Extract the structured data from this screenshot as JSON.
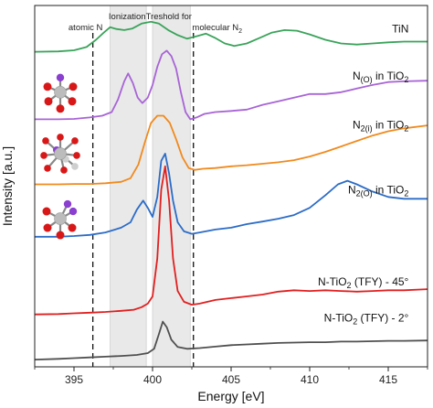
{
  "chart_data": {
    "type": "line",
    "xlabel": "Energy [eV]",
    "ylabel": "Intensity [a.u.]",
    "xlim": [
      392.5,
      417.5
    ],
    "ylim": [
      0,
      10
    ],
    "xticks": [
      395,
      400,
      405,
      410,
      415
    ],
    "annotations": {
      "atomic_n": "atomic N",
      "ionization": "IonizationTreshold for",
      "molecular_n2": "molecular N",
      "molecular_n2_sub": "2"
    },
    "bands": [
      {
        "from": 397.3,
        "to": 399.6,
        "color": "#e9e9e9"
      },
      {
        "from": 400.0,
        "to": 402.4,
        "color": "#e9e9e9"
      }
    ],
    "vlines": [
      396.2,
      402.6
    ],
    "series": [
      {
        "name": "TiN",
        "label": {
          "parts": [
            {
              "t": "TiN",
              "s": "n"
            }
          ]
        },
        "color": "#3aa35a",
        "label_x": 416.3,
        "label_y": 9.25,
        "points": [
          [
            392.5,
            8.72
          ],
          [
            394,
            8.73
          ],
          [
            395,
            8.76
          ],
          [
            395.8,
            8.85
          ],
          [
            396.4,
            9.05
          ],
          [
            396.9,
            9.25
          ],
          [
            397.3,
            9.4
          ],
          [
            397.7,
            9.35
          ],
          [
            398.2,
            9.32
          ],
          [
            398.7,
            9.36
          ],
          [
            399.3,
            9.5
          ],
          [
            399.9,
            9.55
          ],
          [
            400.4,
            9.5
          ],
          [
            401.0,
            9.32
          ],
          [
            401.6,
            9.18
          ],
          [
            402.2,
            9.08
          ],
          [
            402.8,
            9.15
          ],
          [
            403.4,
            9.22
          ],
          [
            404.0,
            9.1
          ],
          [
            404.6,
            8.95
          ],
          [
            405.2,
            8.88
          ],
          [
            406.0,
            8.95
          ],
          [
            406.8,
            9.1
          ],
          [
            407.6,
            9.25
          ],
          [
            408.4,
            9.32
          ],
          [
            409.2,
            9.3
          ],
          [
            410.0,
            9.2
          ],
          [
            411.0,
            9.05
          ],
          [
            412.0,
            8.95
          ],
          [
            413.0,
            8.92
          ],
          [
            414.0,
            8.95
          ],
          [
            415.0,
            8.98
          ],
          [
            416.0,
            9.0
          ],
          [
            417.5,
            9.0
          ]
        ]
      },
      {
        "name": "N(O) in TiO2",
        "label": {
          "parts": [
            {
              "t": "N",
              "s": "n"
            },
            {
              "t": "(O)",
              "s": "sub"
            },
            {
              "t": " in TiO",
              "s": "n"
            },
            {
              "t": "2",
              "s": "sub"
            }
          ]
        },
        "color": "#a864d6",
        "label_x": 416.3,
        "label_y": 7.95,
        "points": [
          [
            392.5,
            6.85
          ],
          [
            394,
            6.85
          ],
          [
            395,
            6.86
          ],
          [
            396,
            6.9
          ],
          [
            396.8,
            6.95
          ],
          [
            397.4,
            7.05
          ],
          [
            397.8,
            7.4
          ],
          [
            398.2,
            7.9
          ],
          [
            398.45,
            8.12
          ],
          [
            398.75,
            7.85
          ],
          [
            399.05,
            7.45
          ],
          [
            399.35,
            7.3
          ],
          [
            399.7,
            7.45
          ],
          [
            400.0,
            7.8
          ],
          [
            400.3,
            8.3
          ],
          [
            400.6,
            8.65
          ],
          [
            400.9,
            8.75
          ],
          [
            401.2,
            8.6
          ],
          [
            401.5,
            8.25
          ],
          [
            401.8,
            7.6
          ],
          [
            402.1,
            7.05
          ],
          [
            402.4,
            6.85
          ],
          [
            402.8,
            6.9
          ],
          [
            403.3,
            7.0
          ],
          [
            404.0,
            7.05
          ],
          [
            405.0,
            7.08
          ],
          [
            406.0,
            7.12
          ],
          [
            407.0,
            7.25
          ],
          [
            408.0,
            7.35
          ],
          [
            409.0,
            7.45
          ],
          [
            410.0,
            7.55
          ],
          [
            411.0,
            7.55
          ],
          [
            412.0,
            7.6
          ],
          [
            413.0,
            7.7
          ],
          [
            414.0,
            7.8
          ],
          [
            415.0,
            7.88
          ],
          [
            416.0,
            7.9
          ],
          [
            417.5,
            7.92
          ]
        ]
      },
      {
        "name": "N2(i) in TiO2",
        "label": {
          "parts": [
            {
              "t": "N",
              "s": "n"
            },
            {
              "t": "2(i)",
              "s": "sub"
            },
            {
              "t": " in TiO",
              "s": "n"
            },
            {
              "t": "2",
              "s": "sub"
            }
          ]
        },
        "color": "#f08a1e",
        "label_x": 416.3,
        "label_y": 6.6,
        "points": [
          [
            392.5,
            5.05
          ],
          [
            394,
            5.05
          ],
          [
            395,
            5.06
          ],
          [
            396,
            5.06
          ],
          [
            397,
            5.08
          ],
          [
            398,
            5.12
          ],
          [
            398.6,
            5.22
          ],
          [
            399.1,
            5.6
          ],
          [
            399.5,
            6.2
          ],
          [
            399.9,
            6.75
          ],
          [
            400.3,
            6.95
          ],
          [
            400.7,
            6.95
          ],
          [
            401.1,
            6.75
          ],
          [
            401.5,
            6.3
          ],
          [
            401.9,
            5.8
          ],
          [
            402.3,
            5.5
          ],
          [
            402.7,
            5.45
          ],
          [
            403.2,
            5.48
          ],
          [
            404.0,
            5.5
          ],
          [
            405.0,
            5.55
          ],
          [
            406.0,
            5.58
          ],
          [
            407.0,
            5.62
          ],
          [
            408.0,
            5.66
          ],
          [
            409.0,
            5.72
          ],
          [
            410.0,
            5.82
          ],
          [
            411.0,
            5.95
          ],
          [
            412.0,
            6.1
          ],
          [
            413.0,
            6.25
          ],
          [
            414.0,
            6.4
          ],
          [
            415.0,
            6.52
          ],
          [
            416.0,
            6.6
          ],
          [
            417.5,
            6.68
          ]
        ]
      },
      {
        "name": "N2(O) in TiO2",
        "label": {
          "parts": [
            {
              "t": "N",
              "s": "n"
            },
            {
              "t": "2(O)",
              "s": "sub"
            },
            {
              "t": " in TiO",
              "s": "n"
            },
            {
              "t": "2",
              "s": "sub"
            }
          ]
        },
        "color": "#2c6cc7",
        "label_x": 416.3,
        "label_y": 4.8,
        "points": [
          [
            392.5,
            3.6
          ],
          [
            394,
            3.6
          ],
          [
            395,
            3.62
          ],
          [
            396,
            3.65
          ],
          [
            397,
            3.72
          ],
          [
            398,
            3.85
          ],
          [
            398.6,
            4.0
          ],
          [
            399.0,
            4.35
          ],
          [
            399.4,
            4.6
          ],
          [
            399.7,
            4.4
          ],
          [
            400.0,
            4.15
          ],
          [
            400.3,
            4.7
          ],
          [
            400.55,
            5.7
          ],
          [
            400.8,
            5.9
          ],
          [
            401.05,
            5.35
          ],
          [
            401.3,
            4.6
          ],
          [
            401.6,
            4.0
          ],
          [
            402.0,
            3.75
          ],
          [
            402.5,
            3.68
          ],
          [
            403.0,
            3.72
          ],
          [
            404.0,
            3.8
          ],
          [
            405.0,
            3.85
          ],
          [
            406.0,
            3.95
          ],
          [
            407.0,
            4.02
          ],
          [
            408.0,
            4.1
          ],
          [
            409.0,
            4.2
          ],
          [
            410.0,
            4.4
          ],
          [
            411.0,
            4.75
          ],
          [
            411.8,
            5.05
          ],
          [
            412.4,
            5.15
          ],
          [
            413.0,
            5.05
          ],
          [
            414.0,
            4.85
          ],
          [
            415.0,
            4.7
          ],
          [
            416.0,
            4.65
          ],
          [
            417.5,
            4.65
          ]
        ]
      },
      {
        "name": "N-TiO2 (TFY) - 45°",
        "label": {
          "parts": [
            {
              "t": "N-TiO",
              "s": "n"
            },
            {
              "t": "2",
              "s": "sub"
            },
            {
              "t": " (TFY) - 45°",
              "s": "n"
            }
          ]
        },
        "color": "#e02020",
        "label_x": 416.3,
        "label_y": 2.25,
        "points": [
          [
            392.5,
            1.45
          ],
          [
            394,
            1.46
          ],
          [
            395,
            1.48
          ],
          [
            396,
            1.5
          ],
          [
            397,
            1.52
          ],
          [
            398,
            1.55
          ],
          [
            398.8,
            1.58
          ],
          [
            399.3,
            1.65
          ],
          [
            399.7,
            1.75
          ],
          [
            400.0,
            1.95
          ],
          [
            400.3,
            3.0
          ],
          [
            400.55,
            4.9
          ],
          [
            400.8,
            5.55
          ],
          [
            401.05,
            4.6
          ],
          [
            401.3,
            3.0
          ],
          [
            401.6,
            2.1
          ],
          [
            402.0,
            1.8
          ],
          [
            402.5,
            1.72
          ],
          [
            403.0,
            1.75
          ],
          [
            404.0,
            1.85
          ],
          [
            405.0,
            1.9
          ],
          [
            406.0,
            1.95
          ],
          [
            407.0,
            2.0
          ],
          [
            408.0,
            2.08
          ],
          [
            409.0,
            2.12
          ],
          [
            410.0,
            2.1
          ],
          [
            411.0,
            2.12
          ],
          [
            412.0,
            2.1
          ],
          [
            413.0,
            2.08
          ],
          [
            414.0,
            2.1
          ],
          [
            415.0,
            2.12
          ],
          [
            416.0,
            2.12
          ],
          [
            417.5,
            2.15
          ]
        ]
      },
      {
        "name": "N-TiO2 (TFY) - 2°",
        "label": {
          "parts": [
            {
              "t": "N-TiO",
              "s": "n"
            },
            {
              "t": "2",
              "s": "sub"
            },
            {
              "t": " (TFY) - 2°",
              "s": "n"
            }
          ]
        },
        "color": "#505050",
        "label_x": 416.3,
        "label_y": 1.25,
        "points": [
          [
            392.5,
            0.2
          ],
          [
            394,
            0.22
          ],
          [
            395,
            0.24
          ],
          [
            396,
            0.26
          ],
          [
            397,
            0.28
          ],
          [
            398,
            0.3
          ],
          [
            399,
            0.33
          ],
          [
            399.7,
            0.38
          ],
          [
            400.1,
            0.5
          ],
          [
            400.4,
            0.9
          ],
          [
            400.65,
            1.25
          ],
          [
            400.9,
            1.1
          ],
          [
            401.2,
            0.75
          ],
          [
            401.6,
            0.55
          ],
          [
            402.2,
            0.5
          ],
          [
            403.0,
            0.52
          ],
          [
            404.0,
            0.56
          ],
          [
            405.0,
            0.6
          ],
          [
            406.0,
            0.62
          ],
          [
            407.0,
            0.64
          ],
          [
            408.0,
            0.66
          ],
          [
            409.0,
            0.67
          ],
          [
            410.0,
            0.68
          ],
          [
            411.0,
            0.68
          ],
          [
            412.0,
            0.7
          ],
          [
            413.0,
            0.7
          ],
          [
            414.0,
            0.71
          ],
          [
            415.0,
            0.72
          ],
          [
            416.0,
            0.72
          ],
          [
            417.5,
            0.73
          ]
        ]
      }
    ]
  },
  "molecules": [
    {
      "name": "molecule-n-o-in-tio2",
      "y": 7.6
    },
    {
      "name": "molecule-n2-i-in-tio2",
      "y": 5.9
    },
    {
      "name": "molecule-n2-o-in-tio2",
      "y": 4.1
    }
  ]
}
